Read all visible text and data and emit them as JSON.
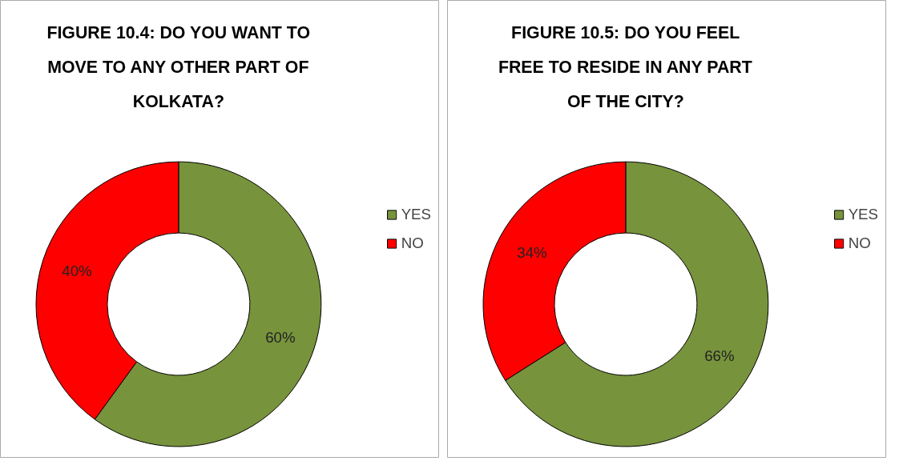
{
  "chart_data": [
    {
      "type": "donut",
      "title": "FIGURE 10.4: DO YOU WANT TO MOVE TO ANY OTHER PART OF KOLKATA?",
      "categories": [
        "YES",
        "NO"
      ],
      "values": [
        60,
        40
      ],
      "colors": [
        "#77933c",
        "#ff0000"
      ],
      "value_labels": [
        "60%",
        "40%"
      ],
      "legend": "right"
    },
    {
      "type": "donut",
      "title": "FIGURE 10.5: DO YOU FEEL FREE TO RESIDE IN ANY PART OF THE CITY?",
      "categories": [
        "YES",
        "NO"
      ],
      "values": [
        66,
        34
      ],
      "colors": [
        "#77933c",
        "#ff0000"
      ],
      "value_labels": [
        "66%",
        "34%"
      ],
      "legend": "right"
    }
  ]
}
